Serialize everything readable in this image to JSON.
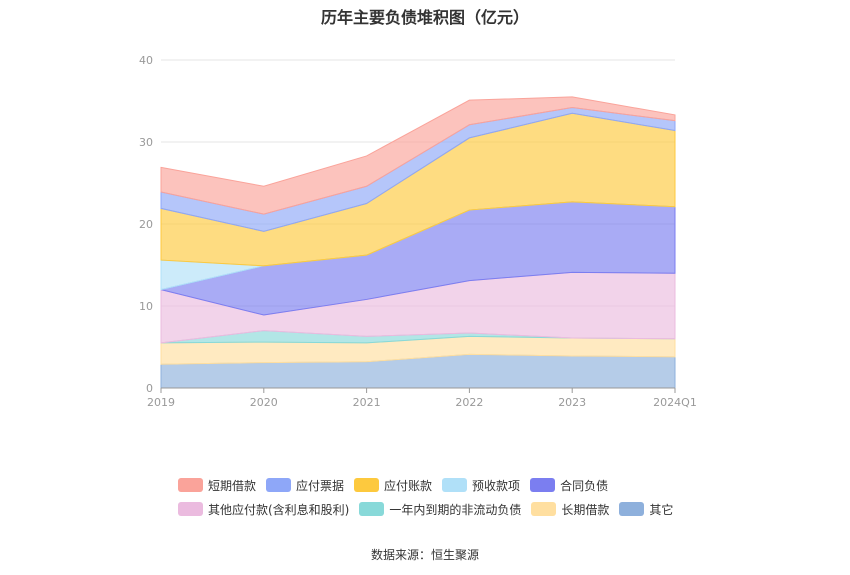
{
  "title": "历年主要负债堆积图（亿元）",
  "source": "数据来源：恒生聚源",
  "chart_data": {
    "type": "area",
    "stacked": true,
    "title": "历年主要负债堆积图（亿元）",
    "xlabel": "",
    "ylabel": "",
    "categories": [
      "2019",
      "2020",
      "2021",
      "2022",
      "2023",
      "2024Q1"
    ],
    "ylim": [
      0,
      40
    ],
    "yticks": [
      0,
      10,
      20,
      30,
      40
    ],
    "grid": true,
    "legend_position": "bottom",
    "series": [
      {
        "name": "其它",
        "color": "#8eb0dc",
        "values": [
          2.9,
          3.1,
          3.2,
          4.1,
          3.9,
          3.8
        ]
      },
      {
        "name": "长期借款",
        "color": "#ffdfa0",
        "values": [
          2.6,
          2.5,
          2.3,
          2.2,
          2.2,
          2.2
        ]
      },
      {
        "name": "一年内到期的非流动负债",
        "color": "#88d9d9",
        "values": [
          0.0,
          1.4,
          0.8,
          0.4,
          0.0,
          0.0
        ]
      },
      {
        "name": "其他应付款(含利息和股利)",
        "color": "#ebbbdf",
        "values": [
          6.5,
          1.9,
          4.5,
          6.4,
          8.0,
          8.0
        ]
      },
      {
        "name": "合同负债",
        "color": "#7b7ef0",
        "values": [
          0.0,
          6.0,
          5.4,
          8.6,
          8.6,
          8.1
        ]
      },
      {
        "name": "预收款项",
        "color": "#b0e0f8",
        "values": [
          3.6,
          0.0,
          0.0,
          0.0,
          0.0,
          0.0
        ]
      },
      {
        "name": "应付账款",
        "color": "#fdc93e",
        "values": [
          6.3,
          4.2,
          6.3,
          8.8,
          10.8,
          9.3
        ]
      },
      {
        "name": "应付票据",
        "color": "#8ea7f8",
        "values": [
          2.0,
          2.1,
          2.1,
          1.6,
          0.7,
          1.2
        ]
      },
      {
        "name": "短期借款",
        "color": "#faa39a",
        "values": [
          3.0,
          3.4,
          3.7,
          3.0,
          1.3,
          0.7
        ]
      }
    ]
  },
  "legend": {
    "row1": [
      {
        "label": "短期借款",
        "color": "#faa39a"
      },
      {
        "label": "应付票据",
        "color": "#8ea7f8"
      },
      {
        "label": "应付账款",
        "color": "#fdc93e"
      },
      {
        "label": "预收款项",
        "color": "#b0e0f8"
      },
      {
        "label": "合同负债",
        "color": "#7b7ef0"
      }
    ],
    "row2": [
      {
        "label": "其他应付款(含利息和股利)",
        "color": "#ebbbdf"
      },
      {
        "label": "一年内到期的非流动负债",
        "color": "#88d9d9"
      },
      {
        "label": "长期借款",
        "color": "#ffdfa0"
      },
      {
        "label": "其它",
        "color": "#8eb0dc"
      }
    ]
  }
}
